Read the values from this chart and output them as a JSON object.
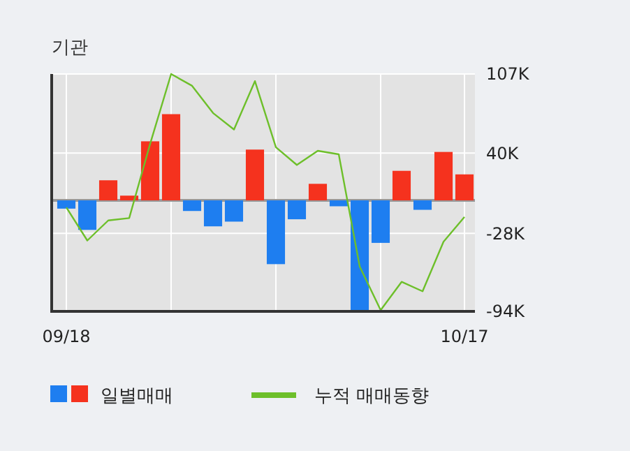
{
  "chart_data": {
    "type": "bar",
    "title": "기관",
    "categories": [
      "09/18",
      null,
      null,
      null,
      null,
      null,
      null,
      null,
      null,
      null,
      null,
      null,
      null,
      null,
      null,
      null,
      null,
      null,
      null,
      "10/17"
    ],
    "series": [
      {
        "name": "일별매매",
        "colors": [
          "#1e7ef0",
          "#1e7ef0",
          "#f5321e",
          "#f5321e",
          "#f5321e",
          "#f5321e",
          "#1e7ef0",
          "#1e7ef0",
          "#1e7ef0",
          "#f5321e",
          "#1e7ef0",
          "#1e7ef0",
          "#f5321e",
          "#1e7ef0",
          "#1e7ef0",
          "#1e7ef0",
          "#f5321e",
          "#1e7ef0",
          "#f5321e",
          "#f5321e"
        ],
        "values": [
          -7,
          -25,
          17,
          4,
          50,
          73,
          -9,
          -22,
          -18,
          43,
          -54,
          -16,
          14,
          -5,
          -94,
          -36,
          25,
          -8,
          41,
          22
        ]
      },
      {
        "name": "누적 매매동향",
        "type": "line",
        "color": "#6dbf2a",
        "values": [
          -6,
          -34,
          -17,
          -15,
          48,
          107,
          97,
          74,
          60,
          101,
          45,
          30,
          42,
          39,
          -56,
          -93,
          -69,
          -77,
          -35,
          -14
        ]
      }
    ],
    "ylim": [
      -94,
      107
    ],
    "yticks": [
      {
        "value": 107,
        "label": "107K"
      },
      {
        "value": 40,
        "label": "40K"
      },
      {
        "value": -28,
        "label": "-28K"
      },
      {
        "value": -94,
        "label": "-94K"
      }
    ],
    "grid": true,
    "legend": "bottom"
  }
}
